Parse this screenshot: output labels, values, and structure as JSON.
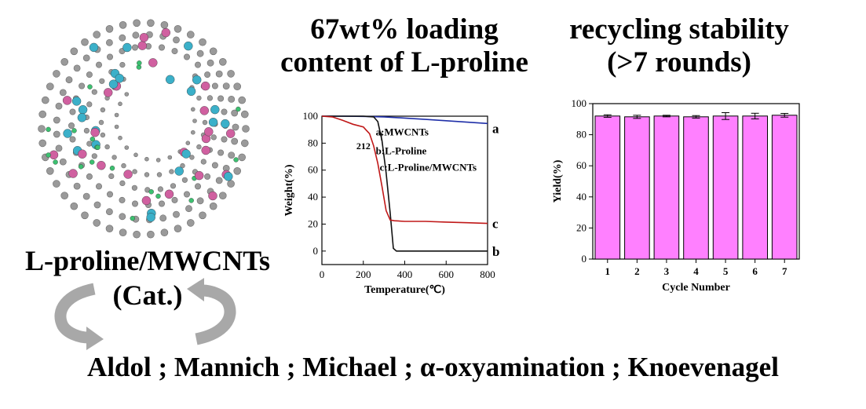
{
  "headings": {
    "loading_line1": "67wt% loading",
    "loading_line2": "content of L-proline",
    "recycling_line1": "recycling stability",
    "recycling_line2": "(>7 rounds)"
  },
  "catalyst": {
    "name": "L-proline/MWCNTs",
    "abbrev": "(Cat.)"
  },
  "reactions": "Aldol ; Mannich ; Michael ; α-oxyamination ; Knoevenagel",
  "colors": {
    "mwcnts": "#1f2fa8",
    "proline": "#111111",
    "composite": "#c01818",
    "bar_fill": "#ff80ff",
    "atom_carbon": "#9a9a9a",
    "atom_blue": "#3bb0c9",
    "atom_pink": "#d060a0",
    "atom_green": "#3cc070",
    "arrow": "#a8a8a8"
  },
  "chart_data": [
    {
      "type": "line",
      "xlabel": "Temperature(℃)",
      "ylabel": "Weight(%)",
      "xlim": [
        0,
        800
      ],
      "ylim": [
        -10,
        100
      ],
      "xticks": [
        0,
        200,
        400,
        600,
        800
      ],
      "yticks": [
        0,
        20,
        40,
        60,
        80,
        100
      ],
      "annotation": "212",
      "annotation_x": 212,
      "legend": [
        "a:MWCNTs",
        "b:L-Proline",
        "c:L-Proline/MWCNTs"
      ],
      "series": [
        {
          "name": "a",
          "x": [
            0,
            100,
            200,
            300,
            400,
            500,
            600,
            700,
            800
          ],
          "y": [
            100,
            100,
            99.8,
            99.5,
            98.6,
            97.6,
            96.6,
            95.6,
            94.6
          ]
        },
        {
          "name": "b",
          "x": [
            0,
            100,
            200,
            250,
            270,
            290,
            310,
            330,
            345,
            360,
            400,
            600,
            800
          ],
          "y": [
            100,
            100,
            100,
            99.5,
            96,
            82,
            58,
            28,
            2,
            0,
            0,
            0,
            0
          ]
        },
        {
          "name": "c",
          "x": [
            0,
            50,
            100,
            150,
            200,
            212,
            230,
            250,
            270,
            290,
            310,
            330,
            350,
            400,
            500,
            600,
            700,
            800
          ],
          "y": [
            100,
            99.5,
            97,
            94,
            92,
            90,
            87,
            78,
            65,
            48,
            30,
            23,
            22.5,
            22,
            22,
            21.5,
            21,
            20.5
          ]
        }
      ]
    },
    {
      "type": "bar",
      "xlabel": "Cycle Number",
      "ylabel": "Yield(%)",
      "categories": [
        "1",
        "2",
        "3",
        "4",
        "5",
        "6",
        "7"
      ],
      "values": [
        92,
        91.5,
        92,
        91.5,
        92,
        92,
        92.5
      ],
      "errors": [
        0.8,
        1.0,
        0.5,
        0.8,
        2.2,
        1.8,
        1.2
      ],
      "ylim": [
        0,
        100
      ],
      "yticks": [
        0,
        20,
        40,
        60,
        80,
        100
      ]
    }
  ]
}
